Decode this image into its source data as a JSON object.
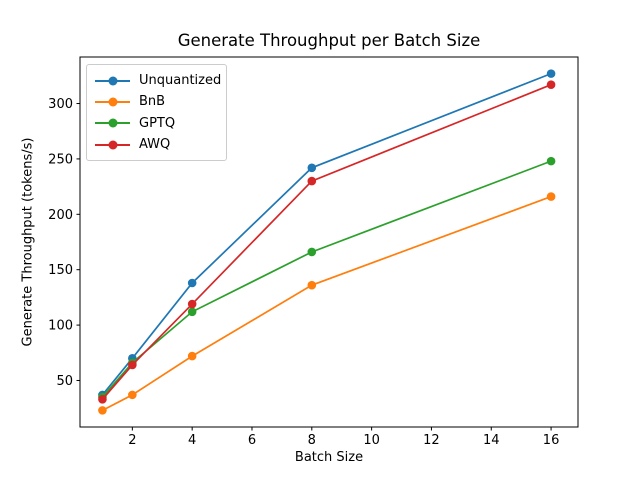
{
  "chart_data": {
    "type": "line",
    "title": "Generate Throughput per Batch Size",
    "xlabel": "Batch Size",
    "ylabel": "Generate Throughput (tokens/s)",
    "x": [
      1,
      2,
      4,
      8,
      16
    ],
    "series": [
      {
        "name": "Unquantized",
        "color": "#1f77b4",
        "values": [
          37,
          70,
          138,
          242,
          327
        ]
      },
      {
        "name": "BnB",
        "color": "#ff7f0e",
        "values": [
          23,
          37,
          72,
          136,
          216
        ]
      },
      {
        "name": "GPTQ",
        "color": "#2ca02c",
        "values": [
          35,
          66,
          112,
          166,
          248
        ]
      },
      {
        "name": "AWQ",
        "color": "#d62728",
        "values": [
          33,
          64,
          119,
          230,
          317
        ]
      }
    ],
    "x_ticks": [
      2,
      4,
      6,
      8,
      10,
      12,
      14,
      16
    ],
    "y_ticks": [
      50,
      100,
      150,
      200,
      250,
      300
    ],
    "xlim": [
      0.25,
      16.9
    ],
    "ylim": [
      8,
      342
    ],
    "grid": false,
    "legend_position": "upper left",
    "marker": "o",
    "axis_color": "#000000",
    "background_color": "#ffffff"
  }
}
